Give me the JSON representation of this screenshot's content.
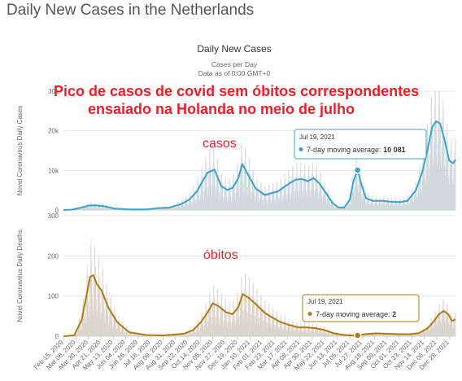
{
  "page": {
    "title": "Daily New Cases in the Netherlands"
  },
  "chart_data": {
    "type": "area",
    "title": "Daily New Cases",
    "subtitle": "Cases per Day",
    "subtitle2": "Data as of 0:00 GMT+0",
    "x_tick_labels": [
      "Feb 15, 2020",
      "Mar 08, 2020",
      "Mar 30, 2020",
      "Apr 21, 2020",
      "May 13, 2020",
      "Jun 04, 2020",
      "Jun 26, 2020",
      "Jul 18, 2020",
      "Aug 09, 2020",
      "Aug 31, 2020",
      "Sep 22, 2020",
      "Oct 14, 2020",
      "Nov 05, 2020",
      "Nov 27, 2020",
      "Dec 19, 2020",
      "Jan 10, 2021",
      "Feb 01, 2021",
      "Feb 23, 2021",
      "Mar 17, 2021",
      "Apr 08, 2021",
      "Apr 30, 2021",
      "May 22, 2021",
      "Jun 13, 2021",
      "Jul 05, 2021",
      "Jul 27, 2021",
      "Aug 18, 2021",
      "Sep 09, 2021",
      "Oct 01, 2021",
      "Oct 23, 2021",
      "Nov 14, 2021",
      "Dec 06, 2021",
      "Dec 28, 2021"
    ],
    "x_ticks_shown": [
      "Feb 15, 2020",
      "Mar 08, 2020",
      "Mar 30, 2020",
      "Apr 21, 2020",
      "May 13, 2020",
      "Jun 04, 2020",
      "Jun 26, 2020",
      "Jul 18, 2020",
      "Aug 09, 2020",
      "Aug 31, 2020",
      "Sep 22, 2020",
      "Oct 14, 2020",
      "Nov 05, 2020",
      "Nov 27, 2020",
      "Dec 19, 2020",
      "Jan 10, 2021",
      "Feb 01, 2021",
      "Feb 23, 2021",
      "Mar 17, 2021",
      "Apr 08, 2021",
      "Apr 30, 2021",
      "May 22, 2021",
      "Jun 13, 2021",
      "Jul 05, 2021",
      "Jul 27, 2021",
      "Aug 18, 2021",
      "Sep 09, 2021",
      "Oct 01, 2021",
      "Oct 23, 2021",
      "Nov 14, 2021",
      "Dec 06, 2021",
      "Dec 28, 2021"
    ],
    "x_ticks_drawn": [
      "Feb 15, 2020",
      "Mar 08, 2020",
      "Mar 30, 2020",
      "Apr 21, 2020",
      "May 13, 2020",
      "Jun 04, 2020",
      "Jun 26, 2020",
      "Jul 18, 2020",
      "Aug 09, 2020",
      "Aug 31, 2020",
      "Sep 22, 2020",
      "Oct 14, 2020",
      "Nov 05, 2020",
      "Nov 27, 2020",
      "Dec 19, 2020",
      "Jan 10, 2021",
      "Feb 01, 2021",
      "Feb 23, 2021",
      "Mar 17, 2021",
      "Apr 08, 2021",
      "Apr 30, 2021",
      "May 22, 2021",
      "Jun 13, 2021",
      "Jul 05, 2021",
      "Jul 27, 2021",
      "Aug 18, 2021",
      "Sep 09, 2021",
      "Oct 01, 2021",
      "Oct 23, 2021",
      "Nov 14, 2021",
      "Dec 06, 2021",
      "Dec 28, 2021"
    ],
    "x_range": [
      "Feb 15, 2020",
      "Jan 08, 2022"
    ],
    "panels": [
      {
        "ylabel": "Novel Coronavirus Daily Cases",
        "ylim": [
          0,
          30000
        ],
        "y_ticks": [
          0,
          10000,
          20000,
          30000
        ],
        "y_tick_labels": [
          "0",
          "10k",
          "20k",
          "30k"
        ],
        "color": "#3ba3c7",
        "series": [
          {
            "name": "7-day moving average",
            "x": [
              "Feb 15, 2020",
              "Mar 01, 2020",
              "Mar 20, 2020",
              "Apr 01, 2020",
              "Apr 10, 2020",
              "Apr 25, 2020",
              "May 15, 2020",
              "Jun 10, 2020",
              "Jul 10, 2020",
              "Aug 01, 2020",
              "Aug 20, 2020",
              "Sep 10, 2020",
              "Sep 25, 2020",
              "Oct 08, 2020",
              "Oct 18, 2020",
              "Oct 27, 2020",
              "Nov 08, 2020",
              "Nov 20, 2020",
              "Dec 01, 2020",
              "Dec 10, 2020",
              "Dec 20, 2020",
              "Dec 27, 2020",
              "Jan 08, 2021",
              "Jan 20, 2021",
              "Feb 05, 2021",
              "Feb 15, 2021",
              "Feb 28, 2021",
              "Mar 10, 2021",
              "Mar 20, 2021",
              "Apr 01, 2021",
              "Apr 12, 2021",
              "Apr 22, 2021",
              "May 02, 2021",
              "May 12, 2021",
              "May 25, 2021",
              "Jun 05, 2021",
              "Jun 15, 2021",
              "Jun 25, 2021",
              "Jul 05, 2021",
              "Jul 12, 2021",
              "Jul 19, 2021",
              "Jul 26, 2021",
              "Aug 03, 2021",
              "Aug 15, 2021",
              "Sep 01, 2021",
              "Sep 15, 2021",
              "Oct 01, 2021",
              "Oct 15, 2021",
              "Oct 30, 2021",
              "Nov 10, 2021",
              "Nov 20, 2021",
              "Nov 28, 2021",
              "Dec 05, 2021",
              "Dec 12, 2021",
              "Dec 20, 2021",
              "Dec 28, 2021",
              "Jan 04, 2022",
              "Jan 08, 2022"
            ],
            "y": [
              0,
              100,
              700,
              1150,
              1200,
              1000,
              400,
              150,
              150,
              500,
              600,
              1500,
              2700,
              4700,
              7300,
              9500,
              10200,
              6000,
              5100,
              5600,
              8000,
              11600,
              8500,
              5400,
              3800,
              4200,
              4700,
              5700,
              6700,
              7700,
              7800,
              7300,
              8100,
              6800,
              4100,
              1700,
              650,
              600,
              2500,
              7500,
              10081,
              6300,
              3000,
              2300,
              2300,
              2100,
              2000,
              2300,
              5000,
              9500,
              15500,
              21000,
              22400,
              21800,
              17500,
              12500,
              11800,
              12700
            ]
          }
        ],
        "tooltip": {
          "date": "Jul 19, 2021",
          "label": "7-day moving average: ",
          "value": "10 081"
        }
      },
      {
        "ylabel": "Novel Coronavirus Daily Deaths",
        "ylim": [
          0,
          300
        ],
        "y_ticks": [
          0,
          100,
          200,
          300
        ],
        "y_tick_labels": [
          "0",
          "100",
          "200",
          "300"
        ],
        "color": "#b07a15",
        "series": [
          {
            "name": "7-day moving average",
            "x": [
              "Feb 15, 2020",
              "Mar 05, 2020",
              "Mar 18, 2020",
              "Mar 28, 2020",
              "Apr 02, 2020",
              "Apr 08, 2020",
              "Apr 14, 2020",
              "Apr 22, 2020",
              "May 05, 2020",
              "May 20, 2020",
              "Jun 10, 2020",
              "Jul 10, 2020",
              "Aug 10, 2020",
              "Sep 15, 2020",
              "Oct 01, 2020",
              "Oct 15, 2020",
              "Oct 27, 2020",
              "Nov 05, 2020",
              "Nov 15, 2020",
              "Nov 28, 2020",
              "Dec 10, 2020",
              "Dec 20, 2020",
              "Dec 28, 2020",
              "Jan 08, 2021",
              "Jan 20, 2021",
              "Feb 05, 2021",
              "Feb 20, 2021",
              "Mar 05, 2021",
              "Mar 20, 2021",
              "Apr 05, 2021",
              "Apr 20, 2021",
              "May 05, 2021",
              "May 20, 2021",
              "Jun 05, 2021",
              "Jun 20, 2021",
              "Jul 05, 2021",
              "Jul 19, 2021",
              "Aug 01, 2021",
              "Aug 20, 2021",
              "Sep 10, 2021",
              "Oct 01, 2021",
              "Oct 20, 2021",
              "Nov 05, 2021",
              "Nov 20, 2021",
              "Dec 01, 2021",
              "Dec 10, 2021",
              "Dec 18, 2021",
              "Dec 26, 2021",
              "Jan 02, 2022",
              "Jan 08, 2022"
            ],
            "y": [
              0,
              2,
              40,
              110,
              148,
              152,
              130,
              115,
              70,
              35,
              10,
              3,
              2,
              6,
              15,
              35,
              60,
              82,
              75,
              60,
              55,
              72,
              105,
              95,
              80,
              58,
              45,
              35,
              28,
              22,
              22,
              20,
              16,
              8,
              4,
              2,
              2,
              5,
              7,
              6,
              5,
              5,
              8,
              20,
              38,
              55,
              63,
              55,
              38,
              42
            ]
          }
        ],
        "tooltip": {
          "date": "Jul 19, 2021",
          "label": "7-day moving average: ",
          "value": "2"
        }
      }
    ],
    "annotations": {
      "headline_line1": "Pico de casos de covid sem óbitos correspondentes",
      "headline_line2": "ensaiado na Holanda no meio de julho",
      "cases_label": "casos",
      "deaths_label": "óbitos"
    }
  }
}
